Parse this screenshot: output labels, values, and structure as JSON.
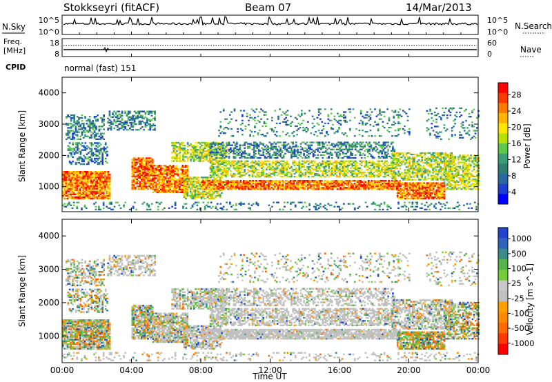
{
  "header": {
    "station": "Stokkseyri (fitACF)",
    "beam": "Beam 07",
    "date": "14/Mar/2013"
  },
  "noise_panel": {
    "left_label": "N.Sky",
    "right_label": "N.Search",
    "ticks_left": [
      "10^5",
      "10^0"
    ],
    "ticks_right": [
      "10^5",
      "10^0"
    ]
  },
  "freq_panel": {
    "left_label_1": "Freq.",
    "left_label_2": "[MHz]",
    "right_label": "Nave",
    "ticks_left": [
      "18",
      "8"
    ],
    "ticks_right": [
      "60",
      "0"
    ],
    "cpid_label": "CPID",
    "cpid_value": "normal (fast) 151"
  },
  "chart_data": [
    {
      "type": "heatmap",
      "name": "power",
      "ylabel": "Slant Range [km]",
      "yticks": [
        "1000",
        "2000",
        "3000",
        "4000"
      ],
      "ylim": [
        200,
        4500
      ],
      "xlabel": "Time UT",
      "xticks": [
        "00:00",
        "04:00",
        "08:00",
        "12:00",
        "16:00",
        "20:00",
        "00:00"
      ],
      "xlim_hours": [
        0,
        24
      ],
      "colorbar": {
        "label": "Power [dB]",
        "ticks": [
          "28",
          "24",
          "20",
          "16",
          "12",
          "8",
          "4"
        ],
        "colors": [
          "#ff0000",
          "#ff3a00",
          "#ff7a00",
          "#ffb400",
          "#ffe600",
          "#b8e000",
          "#5ec84a",
          "#3c9e78",
          "#2f7f70",
          "#2a6aa0",
          "#1e3fd0",
          "#0000ff"
        ]
      }
    },
    {
      "type": "heatmap",
      "name": "velocity",
      "ylabel": "Slant Range [km]",
      "yticks": [
        "1000",
        "2000",
        "3000",
        "4000"
      ],
      "ylim": [
        200,
        4500
      ],
      "xlabel": "Time UT",
      "xticks": [
        "00:00",
        "04:00",
        "08:00",
        "12:00",
        "16:00",
        "20:00",
        "00:00"
      ],
      "xlim_hours": [
        0,
        24
      ],
      "colorbar": {
        "label": "Velocity [m s^-1]",
        "ticks": [
          "1000",
          "500",
          "100",
          "25",
          "-25",
          "-100",
          "-500",
          "-1000"
        ],
        "colors": [
          "#2244cc",
          "#2e66bb",
          "#3c8c8c",
          "#56b24a",
          "#74cc3a",
          "#c8c8c8",
          "#c0c0c0",
          "#ffa000",
          "#ff8a00",
          "#ff6a00",
          "#ff3a00",
          "#ff0000"
        ]
      }
    }
  ],
  "colors": {
    "ground_scatter": "#c0c0c0",
    "axis": "#000000"
  }
}
